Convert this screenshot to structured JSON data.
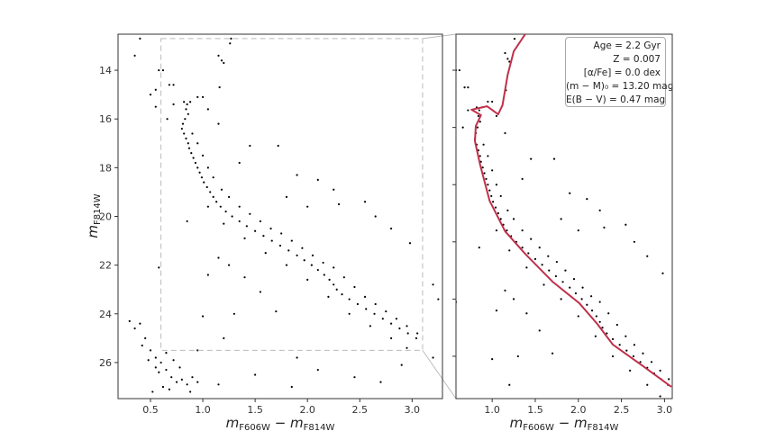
{
  "chart_data": [
    {
      "type": "scatter",
      "panel": "left",
      "xlabel": {
        "m1": "m",
        "s1": "F606W",
        "op": " − ",
        "m2": "m",
        "s2": "F814W"
      },
      "ylabel": {
        "m": "m",
        "s": "F814W"
      },
      "xlim": [
        0.19,
        3.29
      ],
      "ylim": [
        27.48,
        12.52
      ],
      "y_inverted": true,
      "xticks": [
        "0.5",
        "1.0",
        "1.5",
        "2.0",
        "2.5",
        "3.0"
      ],
      "yticks": [
        "14",
        "16",
        "18",
        "20",
        "22",
        "24",
        "26"
      ],
      "zoom_box": {
        "x": [
          0.6,
          3.1
        ],
        "y": [
          12.7,
          25.5
        ],
        "style": "dashed"
      },
      "point_color": "#000000"
    },
    {
      "type": "scatter+line",
      "panel": "right",
      "xlabel": {
        "m1": "m",
        "s1": "F606W",
        "op": " − ",
        "m2": "m",
        "s2": "F814W"
      },
      "xlim": [
        0.58,
        3.09
      ],
      "ylim": [
        25.48,
        12.74
      ],
      "y_inverted": true,
      "xticks": [
        "1.0",
        "1.5",
        "2.0",
        "2.5",
        "3.0"
      ],
      "yticks_unlabeled": [
        14,
        16,
        18,
        20,
        22,
        24
      ],
      "isochrone_color": "#c0304a",
      "isochrone": [
        [
          3.08,
          25.07
        ],
        [
          2.75,
          24.34
        ],
        [
          2.4,
          23.59
        ],
        [
          2.22,
          22.87
        ],
        [
          2.01,
          22.14
        ],
        [
          1.7,
          21.39
        ],
        [
          1.39,
          20.44
        ],
        [
          1.15,
          19.63
        ],
        [
          0.97,
          18.56
        ],
        [
          0.86,
          17.3
        ],
        [
          0.8,
          16.48
        ],
        [
          0.81,
          15.95
        ],
        [
          0.87,
          15.57
        ],
        [
          0.76,
          15.38
        ],
        [
          0.94,
          15.26
        ],
        [
          1.07,
          15.54
        ],
        [
          1.12,
          15.22
        ],
        [
          1.18,
          14.16
        ],
        [
          1.25,
          13.34
        ],
        [
          1.39,
          12.71
        ]
      ],
      "legend": [
        "Age = 2.2 Gyr",
        "Z = 0.007",
        "[α/Fe] = 0.0 dex",
        "(m − M)₀ = 13.20 mag",
        "E(B − V) = 0.47 mag"
      ]
    }
  ],
  "points": [
    [
      0.82,
      15.3
    ],
    [
      0.85,
      15.4
    ],
    [
      0.88,
      15.3
    ],
    [
      0.84,
      15.6
    ],
    [
      0.86,
      15.8
    ],
    [
      0.83,
      16.0
    ],
    [
      0.81,
      16.2
    ],
    [
      0.8,
      16.4
    ],
    [
      0.82,
      16.6
    ],
    [
      0.84,
      16.8
    ],
    [
      0.86,
      17.0
    ],
    [
      0.87,
      17.2
    ],
    [
      0.89,
      17.4
    ],
    [
      0.91,
      17.6
    ],
    [
      0.93,
      17.8
    ],
    [
      0.95,
      18.0
    ],
    [
      0.97,
      18.2
    ],
    [
      0.99,
      18.4
    ],
    [
      1.01,
      18.6
    ],
    [
      1.04,
      18.8
    ],
    [
      1.07,
      19.0
    ],
    [
      1.1,
      19.2
    ],
    [
      1.13,
      19.4
    ],
    [
      1.17,
      19.6
    ],
    [
      1.22,
      19.8
    ],
    [
      1.28,
      20.0
    ],
    [
      1.35,
      20.2
    ],
    [
      1.42,
      20.4
    ],
    [
      1.5,
      20.6
    ],
    [
      1.58,
      20.8
    ],
    [
      1.66,
      21.0
    ],
    [
      1.74,
      21.2
    ],
    [
      1.82,
      21.4
    ],
    [
      1.9,
      21.6
    ],
    [
      1.97,
      21.8
    ],
    [
      2.04,
      22.0
    ],
    [
      2.1,
      22.2
    ],
    [
      2.16,
      22.4
    ],
    [
      2.21,
      22.6
    ],
    [
      2.25,
      22.8
    ],
    [
      2.28,
      23.0
    ],
    [
      2.33,
      23.2
    ],
    [
      2.4,
      23.4
    ],
    [
      2.48,
      23.6
    ],
    [
      2.56,
      23.8
    ],
    [
      2.64,
      24.0
    ],
    [
      2.72,
      24.2
    ],
    [
      2.8,
      24.4
    ],
    [
      2.88,
      24.6
    ],
    [
      2.96,
      24.8
    ],
    [
      3.04,
      25.0
    ],
    [
      0.9,
      16.6
    ],
    [
      0.95,
      17.0
    ],
    [
      1.0,
      17.5
    ],
    [
      1.05,
      18.0
    ],
    [
      1.1,
      18.4
    ],
    [
      1.18,
      18.9
    ],
    [
      1.25,
      19.2
    ],
    [
      1.35,
      19.6
    ],
    [
      1.45,
      19.9
    ],
    [
      1.55,
      20.2
    ],
    [
      1.65,
      20.5
    ],
    [
      1.75,
      20.7
    ],
    [
      1.85,
      21.0
    ],
    [
      1.95,
      21.3
    ],
    [
      2.05,
      21.6
    ],
    [
      2.15,
      21.9
    ],
    [
      2.25,
      22.1
    ],
    [
      2.35,
      22.5
    ],
    [
      2.45,
      22.9
    ],
    [
      2.55,
      23.3
    ],
    [
      2.65,
      23.6
    ],
    [
      2.75,
      23.9
    ],
    [
      2.85,
      24.2
    ],
    [
      2.95,
      24.5
    ],
    [
      3.05,
      24.8
    ],
    [
      1.05,
      19.6
    ],
    [
      1.2,
      20.3
    ],
    [
      1.4,
      20.9
    ],
    [
      1.6,
      21.5
    ],
    [
      1.8,
      22.0
    ],
    [
      2.0,
      22.6
    ],
    [
      2.2,
      23.3
    ],
    [
      2.4,
      24.0
    ],
    [
      2.6,
      24.5
    ],
    [
      2.8,
      25.0
    ],
    [
      2.95,
      25.4
    ],
    [
      1.45,
      17.1
    ],
    [
      1.72,
      17.1
    ],
    [
      1.35,
      17.8
    ],
    [
      1.9,
      18.3
    ],
    [
      2.1,
      18.5
    ],
    [
      2.25,
      18.9
    ],
    [
      2.3,
      19.5
    ],
    [
      2.55,
      19.4
    ],
    [
      2.65,
      20.0
    ],
    [
      2.8,
      20.5
    ],
    [
      2.98,
      21.1
    ],
    [
      3.2,
      22.8
    ],
    [
      3.25,
      23.4
    ],
    [
      2.0,
      19.6
    ],
    [
      1.8,
      19.2
    ],
    [
      1.15,
      21.7
    ],
    [
      1.25,
      22.0
    ],
    [
      1.4,
      22.5
    ],
    [
      1.55,
      23.1
    ],
    [
      1.7,
      23.9
    ],
    [
      1.3,
      24.0
    ],
    [
      1.0,
      24.1
    ],
    [
      0.85,
      20.2
    ],
    [
      1.05,
      22.4
    ],
    [
      1.2,
      25.0
    ],
    [
      1.5,
      26.5
    ],
    [
      1.9,
      25.8
    ],
    [
      2.1,
      26.3
    ],
    [
      2.45,
      26.6
    ],
    [
      2.7,
      26.8
    ],
    [
      2.9,
      26.1
    ],
    [
      3.2,
      25.8
    ],
    [
      3.3,
      25.5
    ],
    [
      1.15,
      26.9
    ],
    [
      1.85,
      27.0
    ],
    [
      0.58,
      22.1
    ],
    [
      0.95,
      25.5
    ],
    [
      0.4,
      12.7
    ],
    [
      0.35,
      13.4
    ],
    [
      0.58,
      14.0
    ],
    [
      0.55,
      14.8
    ],
    [
      0.5,
      15.0
    ],
    [
      0.55,
      15.5
    ],
    [
      0.62,
      14.0
    ],
    [
      0.68,
      14.6
    ],
    [
      0.72,
      14.6
    ],
    [
      0.72,
      15.4
    ],
    [
      0.66,
      16.0
    ],
    [
      1.27,
      12.7
    ],
    [
      1.26,
      12.9
    ],
    [
      1.15,
      13.4
    ],
    [
      1.18,
      13.6
    ],
    [
      1.2,
      13.7
    ],
    [
      1.16,
      14.7
    ],
    [
      1.05,
      15.6
    ],
    [
      1.0,
      15.1
    ],
    [
      0.95,
      15.1
    ],
    [
      1.15,
      16.2
    ],
    [
      0.3,
      24.3
    ],
    [
      0.35,
      24.6
    ],
    [
      0.4,
      24.4
    ],
    [
      0.45,
      25.0
    ],
    [
      0.5,
      25.5
    ],
    [
      0.55,
      25.8
    ],
    [
      0.6,
      26.0
    ],
    [
      0.65,
      26.3
    ],
    [
      0.7,
      26.6
    ],
    [
      0.75,
      26.8
    ],
    [
      0.8,
      26.7
    ],
    [
      0.85,
      26.9
    ],
    [
      0.62,
      27.0
    ],
    [
      0.52,
      27.2
    ],
    [
      0.48,
      25.9
    ],
    [
      0.42,
      25.3
    ],
    [
      0.58,
      26.4
    ],
    [
      0.68,
      27.1
    ],
    [
      0.78,
      26.2
    ],
    [
      0.9,
      26.6
    ],
    [
      0.72,
      25.9
    ],
    [
      0.55,
      26.2
    ],
    [
      0.65,
      25.6
    ],
    [
      0.88,
      27.2
    ],
    [
      0.95,
      26.8
    ]
  ]
}
